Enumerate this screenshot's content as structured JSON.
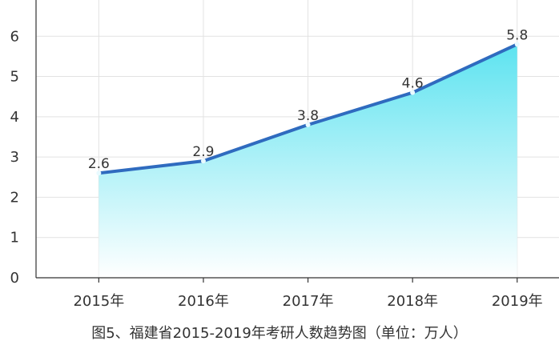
{
  "chart_data": {
    "type": "area",
    "categories": [
      "2015年",
      "2016年",
      "2017年",
      "2018年",
      "2019年"
    ],
    "values": [
      2.6,
      2.9,
      3.8,
      4.6,
      5.8
    ],
    "data_labels": [
      "2.6",
      "2.9",
      "3.8",
      "4.6",
      "5.8"
    ],
    "y_ticks": [
      "0",
      "1",
      "2",
      "3",
      "4",
      "5",
      "6"
    ],
    "ylim": [
      0,
      6.9
    ],
    "title": "",
    "xlabel": "",
    "ylabel": "",
    "grid": true,
    "legend": "none",
    "caption": "图5、福建省2015-2019年考研人数趋势图（单位：万人）"
  },
  "colors": {
    "line": "#2f6bbf",
    "fill_top": "#5de3f0",
    "fill_bottom": "#ffffff",
    "grid": "#e2e2e2",
    "axis": "#333333",
    "marker": "#e8faff"
  }
}
